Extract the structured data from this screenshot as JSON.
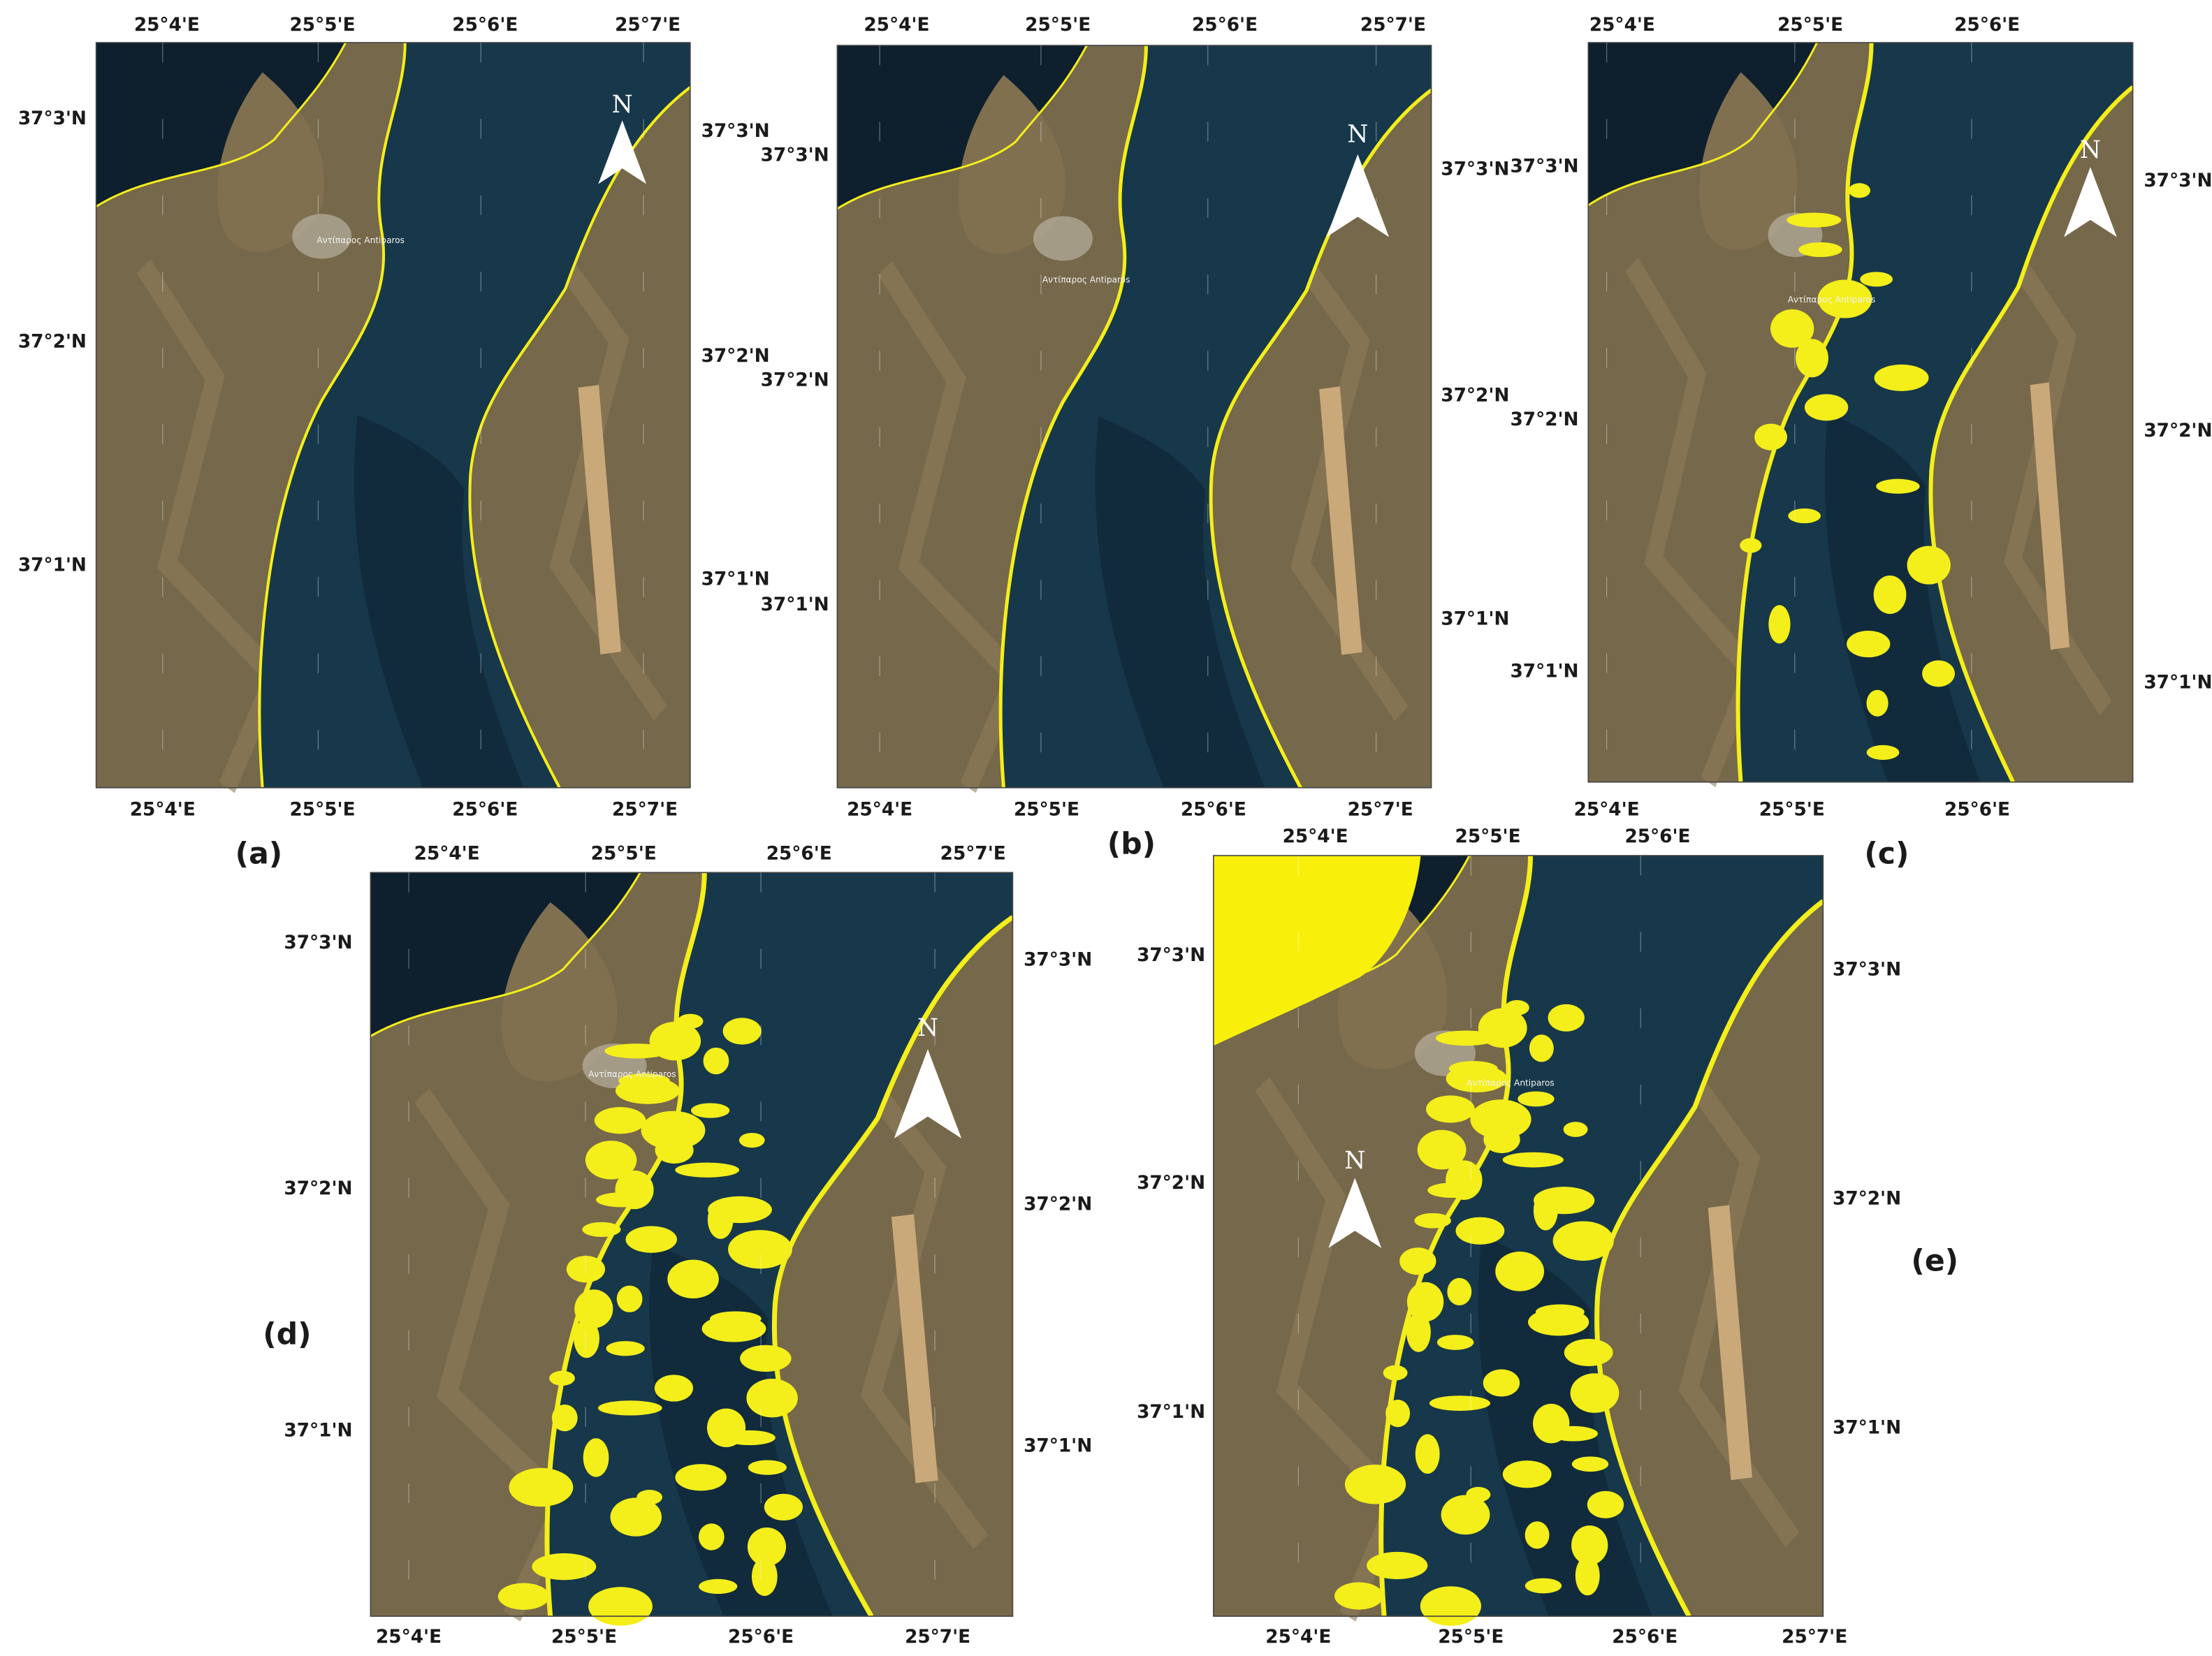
{
  "figure": {
    "panels": [
      {
        "label": "(a)",
        "north": "N",
        "place": "Αντίπαρος Antiparos",
        "lon_top": [
          "25°4'E",
          "25°5'E",
          "25°6'E",
          "25°7'E"
        ],
        "lon_bottom": [
          "25°4'E",
          "25°5'E",
          "25°6'E",
          "25°7'E"
        ],
        "lat_left": [
          "37°3'N",
          "37°2'N",
          "37°1'N"
        ],
        "lat_right": [
          "37°3'N",
          "37°2'N",
          "37°1'N"
        ]
      },
      {
        "label": "(b)",
        "north": "N",
        "place": "Αντίπαρος Antiparos",
        "lon_top": [
          "25°4'E",
          "25°5'E",
          "25°6'E",
          "25°7'E"
        ],
        "lon_bottom": [
          "25°4'E",
          "25°5'E",
          "25°6'E",
          "25°7'E"
        ],
        "lat_left": [
          "37°3'N",
          "37°2'N",
          "37°1'N"
        ],
        "lat_right": [
          "37°3'N",
          "37°2'N",
          "37°1'N"
        ]
      },
      {
        "label": "(c)",
        "north": "N",
        "place": "Αντίπαρος Antiparos",
        "lon_top": [
          "25°4'E",
          "25°5'E",
          "25°6'E"
        ],
        "lon_bottom": [
          "25°4'E",
          "25°5'E",
          "25°6'E"
        ],
        "lat_left": [
          "37°3'N",
          "37°2'N",
          "37°1'N"
        ],
        "lat_right": [
          "37°3'N",
          "37°2'N",
          "37°1'N"
        ]
      },
      {
        "label": "(d)",
        "north": "N",
        "place": "Αντίπαρος Antiparos",
        "lon_top": [
          "25°4'E",
          "25°5'E",
          "25°6'E",
          "25°7'E"
        ],
        "lon_bottom": [
          "25°4'E",
          "25°5'E",
          "25°6'E",
          "25°7'E"
        ],
        "lat_left": [
          "37°3'N",
          "37°2'N",
          "37°1'N"
        ],
        "lat_right": [
          "37°3'N",
          "37°2'N",
          "37°1'N"
        ]
      },
      {
        "label": "(e)",
        "north": "N",
        "place": "Αντίπαρος Antiparos",
        "lon_top": [
          "25°4'E",
          "25°5'E",
          "25°6'E"
        ],
        "lon_bottom": [
          "25°4'E",
          "25°5'E",
          "25°6'E",
          "25°7'E"
        ],
        "lat_left": [
          "37°3'N",
          "37°2'N",
          "37°1'N"
        ],
        "lat_right": [
          "37°3'N",
          "37°2'N",
          "37°1'N"
        ]
      }
    ]
  }
}
